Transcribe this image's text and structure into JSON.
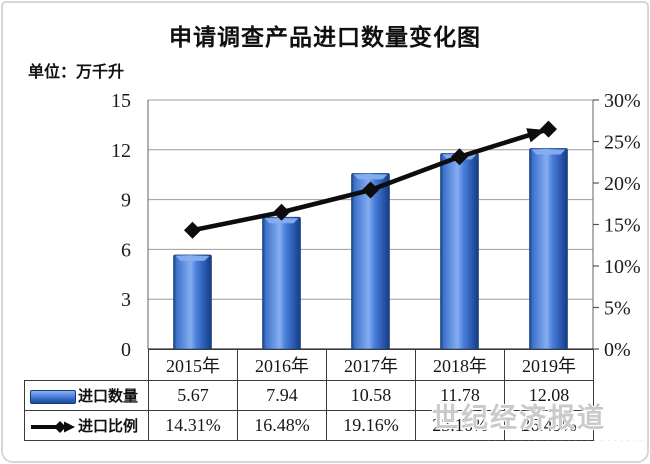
{
  "title": "申请调查产品进口数量变化图",
  "unit_label": "单位：万千升",
  "chart_data": {
    "type": "combo",
    "categories": [
      "2015年",
      "2016年",
      "2017年",
      "2018年",
      "2019年"
    ],
    "series": [
      {
        "name": "进口数量",
        "chart": "bar",
        "axis": "left",
        "values": [
          5.67,
          7.94,
          10.58,
          11.78,
          12.08
        ]
      },
      {
        "name": "进口比例",
        "chart": "line",
        "axis": "right",
        "marker": "diamond",
        "arrow_end": true,
        "values": [
          14.31,
          16.48,
          19.16,
          23.16,
          26.49
        ],
        "labels": [
          "14.31%",
          "16.48%",
          "19.16%",
          "23.16%",
          "26.49%"
        ]
      }
    ],
    "left_axis": {
      "min": 0,
      "max": 15,
      "ticks": [
        0,
        3,
        6,
        9,
        12,
        15
      ]
    },
    "right_axis": {
      "min": 0,
      "max": 30,
      "ticks": [
        "0%",
        "5%",
        "10%",
        "15%",
        "20%",
        "25%",
        "30%"
      ]
    },
    "grid": true,
    "legend_position": "bottom-table"
  },
  "table": {
    "header": [
      "2015年",
      "2016年",
      "2017年",
      "2018年",
      "2019年"
    ],
    "rows": [
      {
        "label": "进口数量",
        "values": [
          "5.67",
          "7.94",
          "10.58",
          "11.78",
          "12.08"
        ]
      },
      {
        "label": "进口比例",
        "values": [
          "14.31%",
          "16.48%",
          "19.16%",
          "23.16%",
          "26.49%"
        ]
      }
    ]
  },
  "watermark": {
    "text": "世纪经济报道",
    "subtext": "·····································"
  },
  "colors": {
    "bar_main": "#4a80dc",
    "bar_light": "#86aef0",
    "bar_dark": "#16407e",
    "bar_edge": "#113a7c",
    "line": "#0d0d0d",
    "grid": "#9b9b9b",
    "plot_border": "#7d7d7d",
    "axis_line": "#3a3a3a",
    "tick_text": "#1c1c1c"
  }
}
